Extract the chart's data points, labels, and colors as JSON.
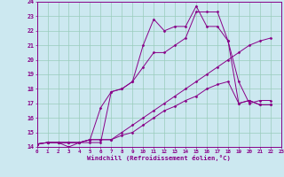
{
  "bg_color": "#cce8f0",
  "grid_color": "#99ccbb",
  "line_color": "#880088",
  "xlim": [
    0,
    23
  ],
  "ylim": [
    14,
    24
  ],
  "yticks": [
    14,
    15,
    16,
    17,
    18,
    19,
    20,
    21,
    22,
    23,
    24
  ],
  "xticks": [
    0,
    1,
    2,
    3,
    4,
    5,
    6,
    7,
    8,
    9,
    10,
    11,
    12,
    13,
    14,
    15,
    16,
    17,
    18,
    19,
    20,
    21,
    22,
    23
  ],
  "xlabel": "Windchill (Refroidissement éolien,°C)",
  "series": [
    {
      "x": [
        0,
        1,
        2,
        3,
        4,
        5,
        6,
        7,
        8,
        9,
        10,
        11,
        12,
        13,
        14,
        15,
        16,
        17,
        18,
        19,
        20,
        21,
        22
      ],
      "y": [
        14.2,
        14.3,
        14.3,
        14.0,
        14.3,
        14.3,
        14.3,
        17.8,
        18.0,
        18.5,
        21.0,
        22.8,
        22.0,
        22.3,
        22.3,
        23.7,
        22.3,
        22.3,
        21.3,
        17.0,
        17.2,
        16.9,
        16.9
      ]
    },
    {
      "x": [
        0,
        1,
        2,
        3,
        4,
        5,
        6,
        7,
        8,
        9,
        10,
        11,
        12,
        13,
        14,
        15,
        16,
        17,
        18,
        19,
        20,
        21,
        22
      ],
      "y": [
        14.2,
        14.3,
        14.3,
        14.3,
        14.3,
        14.5,
        16.7,
        17.8,
        18.0,
        18.5,
        19.5,
        20.5,
        20.5,
        21.0,
        21.5,
        23.3,
        23.3,
        23.3,
        21.3,
        18.5,
        17.0,
        17.2,
        17.2
      ]
    },
    {
      "x": [
        0,
        1,
        2,
        3,
        4,
        5,
        6,
        7,
        8,
        9,
        10,
        11,
        12,
        13,
        14,
        15,
        16,
        17,
        18,
        19,
        20,
        21,
        22
      ],
      "y": [
        14.2,
        14.3,
        14.3,
        14.3,
        14.3,
        14.5,
        14.5,
        14.5,
        15.0,
        15.5,
        16.0,
        16.5,
        17.0,
        17.5,
        18.0,
        18.5,
        19.0,
        19.5,
        20.0,
        20.5,
        21.0,
        21.3,
        21.5
      ]
    },
    {
      "x": [
        0,
        1,
        2,
        3,
        4,
        5,
        6,
        7,
        8,
        9,
        10,
        11,
        12,
        13,
        14,
        15,
        16,
        17,
        18,
        19,
        20,
        21,
        22
      ],
      "y": [
        14.2,
        14.3,
        14.3,
        14.3,
        14.3,
        14.5,
        14.5,
        14.5,
        14.8,
        15.0,
        15.5,
        16.0,
        16.5,
        16.8,
        17.2,
        17.5,
        18.0,
        18.3,
        18.5,
        17.0,
        17.2,
        16.9,
        16.9
      ]
    }
  ]
}
